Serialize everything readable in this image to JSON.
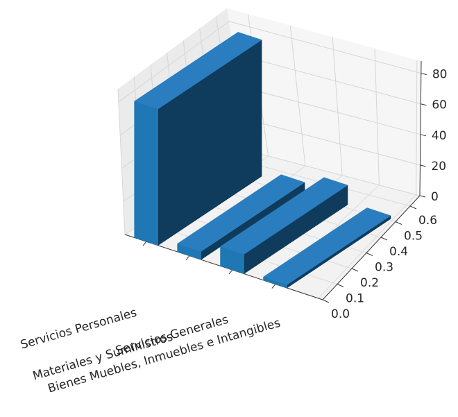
{
  "chart_data": {
    "type": "bar",
    "projection": "3d",
    "categories": [
      "Servicios Personales",
      "Materiales y Suministros",
      "Servicios Generales",
      "Bienes Muebles, Inmuebles e Intangibles"
    ],
    "values": [
      84,
      5,
      12,
      2
    ],
    "title": "",
    "xlabel": "",
    "ylabel": "",
    "zlabel": "",
    "zlim": [
      0,
      88
    ],
    "zticks": [
      "0",
      "20",
      "40",
      "60",
      "80"
    ],
    "yticks": [
      "0.0",
      "0.1",
      "0.2",
      "0.3",
      "0.4",
      "0.5",
      "0.6"
    ],
    "grid": true,
    "bar_color": "#1f77b4",
    "bar_top_color": "#2a7ec0",
    "bar_side_color": "#0f3b5c"
  }
}
